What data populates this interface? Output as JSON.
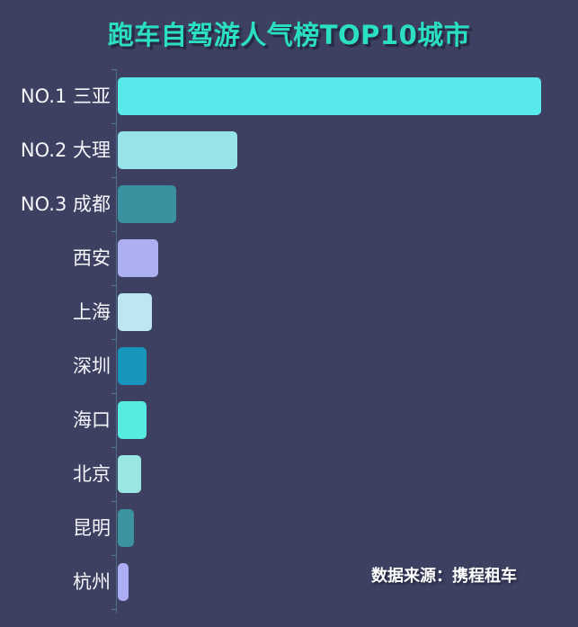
{
  "page": {
    "background_color": "#3D4061"
  },
  "title": {
    "text": "跑车自驾游人气榜TOP10城市",
    "color": "#2BDFC1"
  },
  "footer": {
    "source_text": "数据来源：携程租车"
  },
  "chart_data": {
    "type": "bar",
    "orientation": "horizontal",
    "title": "跑车自驾游人气榜TOP10城市",
    "categories": [
      "NO.1 三亚",
      "NO.2 大理",
      "NO.3 成都",
      "西安",
      "上海",
      "深圳",
      "海口",
      "北京",
      "昆明",
      "杭州"
    ],
    "values": [
      100,
      28.2,
      13.8,
      9.6,
      8.1,
      6.9,
      6.7,
      5.5,
      3.9,
      2.6
    ],
    "value_note": "relative popularity as % of NO.1 (chart shows no numeric axis labels)",
    "bar_colors": [
      "#58EAEA",
      "#96E3E8",
      "#3A92A1",
      "#ACAFF0",
      "#BDE6F3",
      "#1895BD",
      "#57ECE1",
      "#99E6E2",
      "#3D92A0",
      "#ABAEF4"
    ],
    "xlim": [
      0,
      100
    ],
    "grid": false,
    "legend": false,
    "annotations": [
      "数据来源：携程租车"
    ]
  }
}
